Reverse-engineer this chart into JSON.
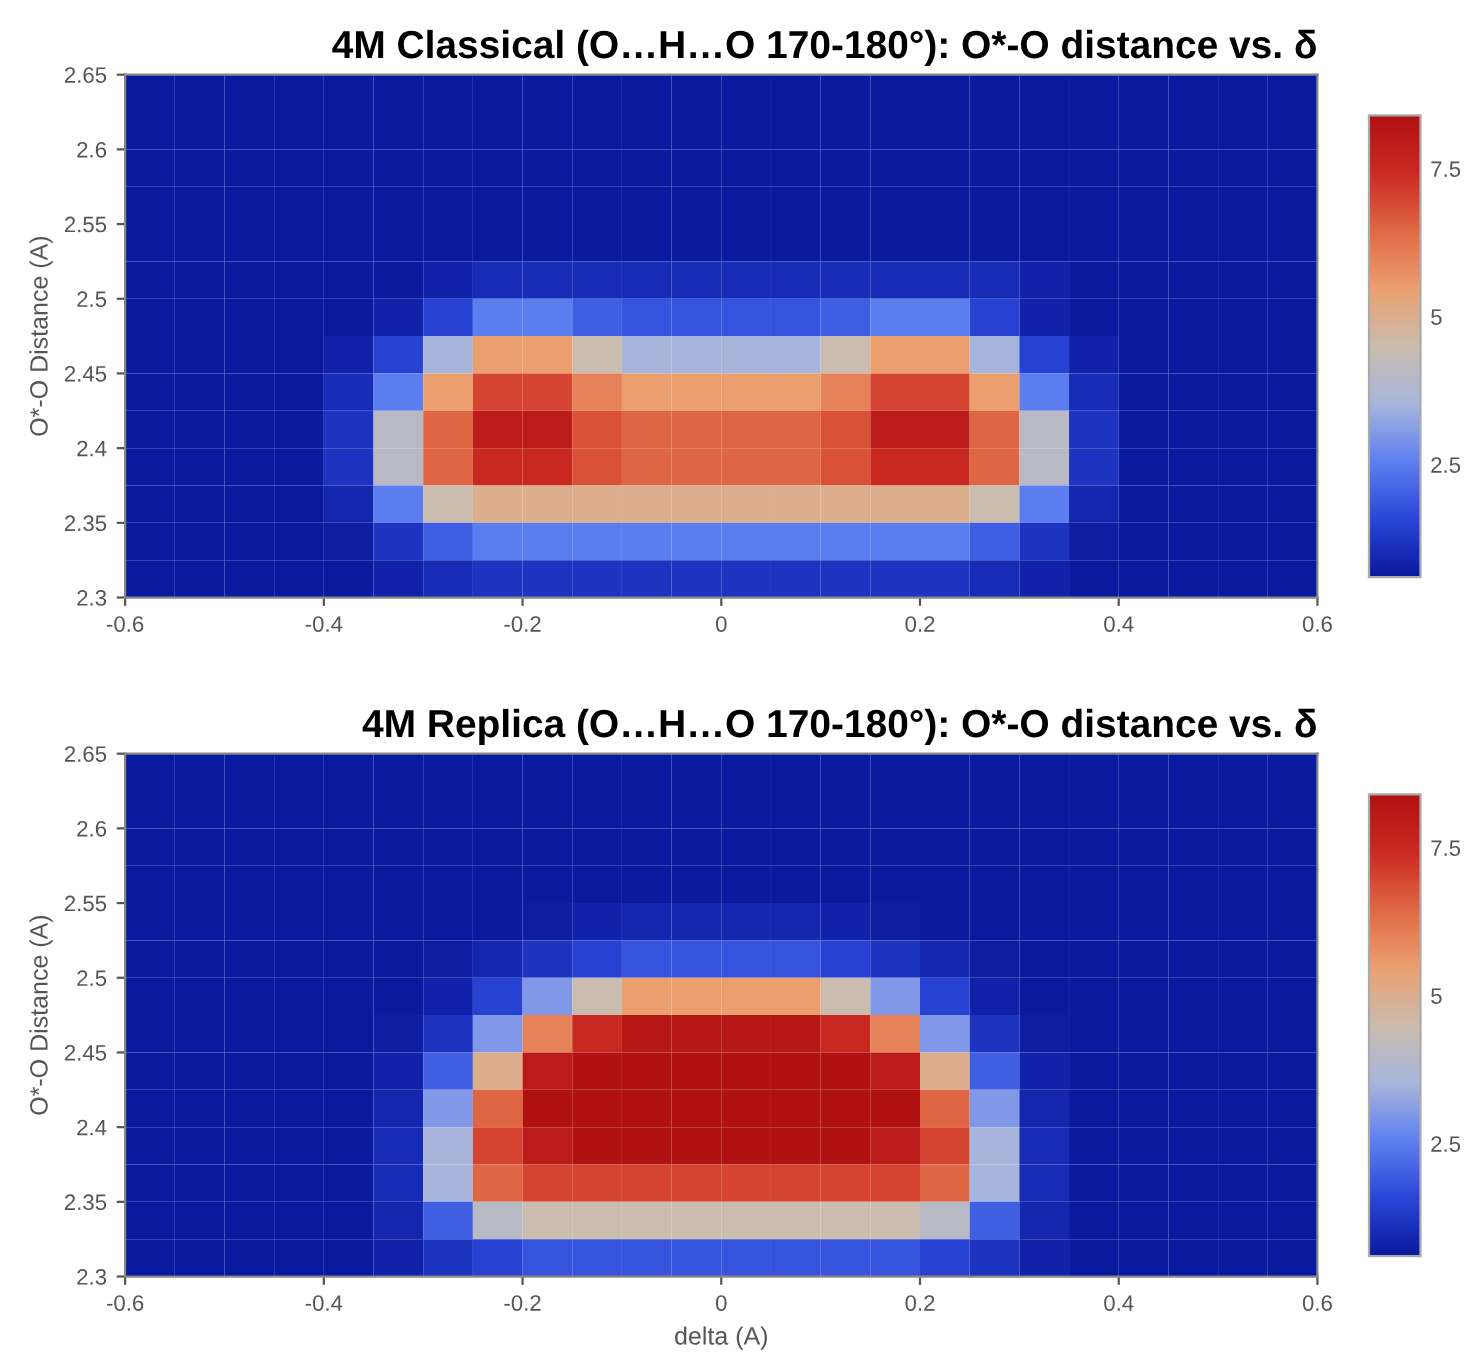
{
  "chart_data": [
    {
      "type": "heatmap",
      "title": "4M Classical (O…H…O 170-180°): O*-O distance vs. δ",
      "ylabel": "O*-O Distance (A)",
      "xlim": [
        -0.6,
        0.6
      ],
      "xticks": [
        -0.6,
        -0.4,
        -0.2,
        0,
        0.2,
        0.4,
        0.6
      ],
      "ylim": [
        2.3,
        2.65
      ],
      "yticks": [
        2.3,
        2.35,
        2.4,
        2.45,
        2.5,
        2.55,
        2.6,
        2.65
      ],
      "clim": [
        0.6,
        8.4
      ],
      "cticks": [
        2.5,
        5,
        7.5
      ],
      "cells": [
        [
          0.6,
          0.6,
          0.6,
          0.6,
          0.6,
          0.6,
          0.6,
          0.6,
          0.6,
          0.6,
          0.6,
          0.6,
          0.6,
          0.6,
          0.6,
          0.6,
          0.6,
          0.6,
          0.6,
          0.6,
          0.6,
          0.6,
          0.6,
          0.6
        ],
        [
          0.6,
          0.6,
          0.6,
          0.6,
          0.6,
          0.6,
          0.6,
          0.6,
          0.6,
          0.6,
          0.6,
          0.6,
          0.6,
          0.6,
          0.6,
          0.6,
          0.6,
          0.6,
          0.6,
          0.6,
          0.6,
          0.6,
          0.6,
          0.6
        ],
        [
          0.6,
          0.6,
          0.6,
          0.6,
          0.6,
          0.6,
          0.6,
          0.6,
          0.6,
          0.6,
          0.6,
          0.6,
          0.6,
          0.6,
          0.6,
          0.6,
          0.6,
          0.6,
          0.6,
          0.6,
          0.6,
          0.6,
          0.6,
          0.6
        ],
        [
          0.6,
          0.6,
          0.6,
          0.6,
          0.6,
          0.6,
          0.6,
          0.6,
          0.6,
          0.6,
          0.6,
          0.6,
          0.6,
          0.6,
          0.6,
          0.6,
          0.6,
          0.6,
          0.6,
          0.6,
          0.6,
          0.6,
          0.6,
          0.6
        ],
        [
          0.6,
          0.6,
          0.6,
          0.6,
          0.6,
          0.6,
          0.6,
          0.6,
          0.6,
          0.6,
          0.6,
          0.6,
          0.6,
          0.6,
          0.6,
          0.6,
          0.6,
          0.6,
          0.6,
          0.6,
          0.6,
          0.6,
          0.6,
          0.6
        ],
        [
          0.6,
          0.6,
          0.6,
          0.6,
          0.6,
          0.6,
          0.8,
          1.0,
          1.0,
          1.0,
          1.0,
          1.0,
          1.0,
          1.0,
          1.0,
          1.0,
          1.0,
          1.0,
          0.8,
          0.6,
          0.6,
          0.6,
          0.6,
          0.6
        ],
        [
          0.6,
          0.6,
          0.6,
          0.6,
          0.6,
          0.8,
          1.5,
          2.5,
          2.5,
          2.0,
          1.8,
          1.8,
          1.8,
          1.8,
          2.0,
          2.5,
          2.5,
          1.5,
          0.8,
          0.6,
          0.6,
          0.6,
          0.6,
          0.6
        ],
        [
          0.6,
          0.6,
          0.6,
          0.6,
          0.8,
          1.5,
          3.5,
          5.5,
          5.5,
          4.5,
          3.5,
          3.5,
          3.5,
          3.5,
          4.5,
          5.5,
          5.5,
          3.5,
          1.5,
          0.8,
          0.6,
          0.6,
          0.6,
          0.6
        ],
        [
          0.6,
          0.6,
          0.6,
          0.6,
          1.0,
          2.5,
          5.5,
          7.0,
          7.0,
          6.0,
          5.5,
          5.5,
          5.5,
          5.5,
          6.0,
          7.0,
          7.0,
          5.5,
          2.5,
          1.0,
          0.6,
          0.6,
          0.6,
          0.6
        ],
        [
          0.6,
          0.6,
          0.6,
          0.6,
          1.2,
          4.0,
          6.5,
          8.0,
          8.0,
          6.8,
          6.5,
          6.5,
          6.5,
          6.5,
          6.8,
          8.0,
          8.0,
          6.5,
          4.0,
          1.2,
          0.6,
          0.6,
          0.6,
          0.6
        ],
        [
          0.6,
          0.6,
          0.6,
          0.6,
          1.2,
          4.0,
          6.5,
          7.5,
          7.5,
          6.8,
          6.5,
          6.5,
          6.5,
          6.5,
          6.8,
          7.5,
          7.5,
          6.5,
          4.0,
          1.2,
          0.6,
          0.6,
          0.6,
          0.6
        ],
        [
          0.6,
          0.6,
          0.6,
          0.6,
          0.9,
          2.5,
          4.5,
          5.0,
          5.0,
          5.0,
          5.0,
          5.0,
          5.0,
          5.0,
          5.0,
          5.0,
          5.0,
          4.5,
          2.5,
          0.9,
          0.6,
          0.6,
          0.6,
          0.6
        ],
        [
          0.6,
          0.6,
          0.6,
          0.6,
          0.7,
          1.2,
          2.0,
          2.5,
          2.5,
          2.5,
          2.5,
          2.5,
          2.5,
          2.5,
          2.5,
          2.5,
          2.5,
          2.0,
          1.2,
          0.7,
          0.6,
          0.6,
          0.6,
          0.6
        ],
        [
          0.6,
          0.6,
          0.6,
          0.6,
          0.6,
          0.8,
          1.0,
          1.2,
          1.2,
          1.2,
          1.2,
          1.2,
          1.2,
          1.2,
          1.2,
          1.2,
          1.2,
          1.0,
          0.8,
          0.6,
          0.6,
          0.6,
          0.6,
          0.6
        ]
      ]
    },
    {
      "type": "heatmap",
      "title": "4M Replica (O…H…O 170-180°): O*-O distance vs. δ",
      "xlabel": "delta (A)",
      "ylabel": "O*-O Distance (A)",
      "xlim": [
        -0.6,
        0.6
      ],
      "xticks": [
        -0.6,
        -0.4,
        -0.2,
        0,
        0.2,
        0.4,
        0.6
      ],
      "ylim": [
        2.3,
        2.65
      ],
      "yticks": [
        2.3,
        2.35,
        2.4,
        2.45,
        2.5,
        2.55,
        2.6,
        2.65
      ],
      "clim": [
        0.6,
        8.4
      ],
      "cticks": [
        2.5,
        5,
        7.5
      ],
      "cells": [
        [
          0.6,
          0.6,
          0.6,
          0.6,
          0.6,
          0.6,
          0.6,
          0.6,
          0.6,
          0.6,
          0.6,
          0.6,
          0.6,
          0.6,
          0.6,
          0.6,
          0.6,
          0.6,
          0.6,
          0.6,
          0.6,
          0.6,
          0.6,
          0.6
        ],
        [
          0.6,
          0.6,
          0.6,
          0.6,
          0.6,
          0.6,
          0.6,
          0.6,
          0.6,
          0.6,
          0.6,
          0.6,
          0.6,
          0.6,
          0.6,
          0.6,
          0.6,
          0.6,
          0.6,
          0.6,
          0.6,
          0.6,
          0.6,
          0.6
        ],
        [
          0.6,
          0.6,
          0.6,
          0.6,
          0.6,
          0.6,
          0.6,
          0.6,
          0.6,
          0.6,
          0.6,
          0.6,
          0.6,
          0.6,
          0.6,
          0.6,
          0.6,
          0.6,
          0.6,
          0.6,
          0.6,
          0.6,
          0.6,
          0.6
        ],
        [
          0.6,
          0.6,
          0.6,
          0.6,
          0.6,
          0.6,
          0.6,
          0.6,
          0.6,
          0.6,
          0.6,
          0.6,
          0.6,
          0.6,
          0.6,
          0.6,
          0.6,
          0.6,
          0.6,
          0.6,
          0.6,
          0.6,
          0.6,
          0.6
        ],
        [
          0.6,
          0.6,
          0.6,
          0.6,
          0.6,
          0.6,
          0.6,
          0.6,
          0.7,
          0.8,
          0.9,
          0.9,
          0.9,
          0.9,
          0.8,
          0.7,
          0.6,
          0.6,
          0.6,
          0.6,
          0.6,
          0.6,
          0.6,
          0.6
        ],
        [
          0.6,
          0.6,
          0.6,
          0.6,
          0.6,
          0.6,
          0.7,
          0.9,
          1.2,
          1.5,
          1.8,
          1.8,
          1.8,
          1.8,
          1.5,
          1.2,
          0.9,
          0.7,
          0.6,
          0.6,
          0.6,
          0.6,
          0.6,
          0.6
        ],
        [
          0.6,
          0.6,
          0.6,
          0.6,
          0.6,
          0.6,
          0.8,
          1.5,
          3.0,
          4.5,
          5.5,
          5.5,
          5.5,
          5.5,
          4.5,
          3.0,
          1.5,
          0.8,
          0.6,
          0.6,
          0.6,
          0.6,
          0.6,
          0.6
        ],
        [
          0.6,
          0.6,
          0.6,
          0.6,
          0.6,
          0.7,
          1.2,
          3.0,
          6.0,
          7.5,
          8.2,
          8.2,
          8.2,
          8.2,
          7.5,
          6.0,
          3.0,
          1.2,
          0.7,
          0.6,
          0.6,
          0.6,
          0.6,
          0.6
        ],
        [
          0.6,
          0.6,
          0.6,
          0.6,
          0.6,
          0.8,
          2.0,
          5.0,
          8.0,
          8.4,
          8.4,
          8.4,
          8.4,
          8.4,
          8.4,
          8.0,
          5.0,
          2.0,
          0.8,
          0.6,
          0.6,
          0.6,
          0.6,
          0.6
        ],
        [
          0.6,
          0.6,
          0.6,
          0.6,
          0.6,
          0.9,
          3.0,
          6.5,
          8.4,
          8.4,
          8.4,
          8.4,
          8.4,
          8.4,
          8.4,
          8.4,
          6.5,
          3.0,
          0.9,
          0.6,
          0.6,
          0.6,
          0.6,
          0.6
        ],
        [
          0.6,
          0.6,
          0.6,
          0.6,
          0.6,
          1.0,
          3.5,
          7.0,
          8.0,
          8.4,
          8.4,
          8.4,
          8.4,
          8.4,
          8.4,
          8.0,
          7.0,
          3.5,
          1.0,
          0.6,
          0.6,
          0.6,
          0.6,
          0.6
        ],
        [
          0.6,
          0.6,
          0.6,
          0.6,
          0.6,
          1.0,
          3.5,
          6.5,
          7.0,
          7.0,
          7.0,
          7.0,
          7.0,
          7.0,
          7.0,
          7.0,
          6.5,
          3.5,
          1.0,
          0.6,
          0.6,
          0.6,
          0.6,
          0.6
        ],
        [
          0.6,
          0.6,
          0.6,
          0.6,
          0.6,
          0.9,
          2.0,
          4.0,
          4.5,
          4.5,
          4.5,
          4.5,
          4.5,
          4.5,
          4.5,
          4.5,
          4.0,
          2.0,
          0.9,
          0.6,
          0.6,
          0.6,
          0.6,
          0.6
        ],
        [
          0.6,
          0.6,
          0.6,
          0.6,
          0.6,
          0.8,
          1.2,
          1.5,
          1.8,
          1.8,
          1.8,
          1.8,
          1.8,
          1.8,
          1.8,
          1.8,
          1.5,
          1.2,
          0.8,
          0.6,
          0.6,
          0.6,
          0.6,
          0.6
        ]
      ]
    }
  ]
}
